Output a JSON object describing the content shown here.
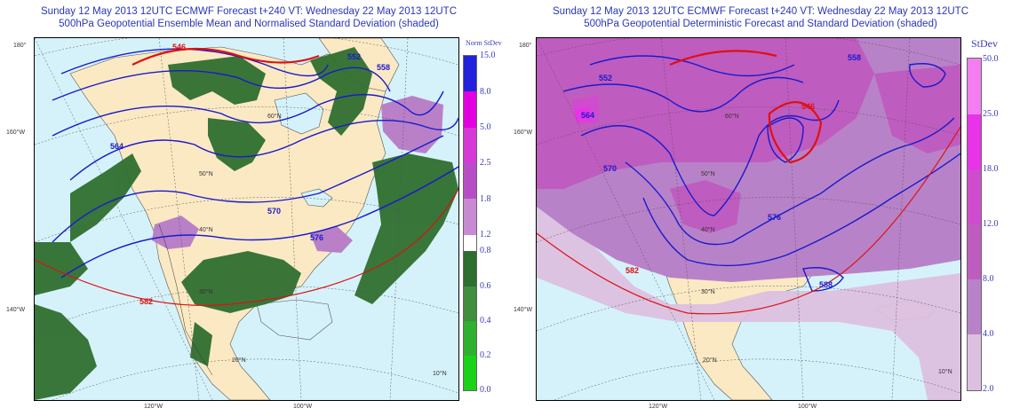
{
  "left": {
    "title_line1": "Sunday 12 May 2013 12UTC ECMWF Forecast t+240  VT: Wednesday 22 May 2013 12UTC",
    "title_line2": "500hPa Geopotential Ensemble Mean and Normalised Standard Deviation (shaded)",
    "edge_labels": {
      "top": "180°",
      "upper": "160°W",
      "lower": "140°W",
      "bottom1": "120°W",
      "bottom2": "100°W"
    },
    "grid_labels": [
      "60°N",
      "50°N",
      "40°N",
      "30°N",
      "20°N",
      "10°N"
    ],
    "contours": [
      "546",
      "552",
      "558",
      "564",
      "570",
      "576",
      "582"
    ],
    "colorbar": {
      "title": "Norm StDev",
      "ticks": [
        "15.0",
        "8.0",
        "5.0",
        "2.5",
        "1.8",
        "1.2",
        "0.8",
        "0.6",
        "0.4",
        "0.2",
        "0.0"
      ],
      "colors": [
        "#2222dd",
        "#e000e0",
        "#d63ad6",
        "#b84ec6",
        "#c88ad2",
        "#ffffff",
        "#2e6e2e",
        "#3f8f3f",
        "#2fb02f",
        "#19d219"
      ]
    }
  },
  "right": {
    "title_line1": "Sunday 12 May 2013 12UTC ECMWF Forecast t+240  VT: Wednesday 22 May 2013 12UTC",
    "title_line2": "500hPa Geopotential Deterministic Forecast and Standard Deviation (shaded)",
    "edge_labels": {
      "top": "180°",
      "upper": "160°W",
      "lower": "140°W",
      "bottom1": "120°W",
      "bottom2": "100°W"
    },
    "grid_labels": [
      "60°N",
      "50°N",
      "40°N",
      "30°N",
      "20°N",
      "10°N"
    ],
    "contours": [
      "546",
      "552",
      "558",
      "564",
      "570",
      "576",
      "582",
      "588"
    ],
    "colorbar": {
      "title": "StDev",
      "ticks": [
        "50.0",
        "25.0",
        "18.0",
        "12.0",
        "8.0",
        "4.0",
        "2.0"
      ],
      "colors": [
        "#f27ef2",
        "#e833e8",
        "#cf4ccf",
        "#bf5cbf",
        "#b882c8",
        "#dcc0e0"
      ]
    }
  },
  "map_colors": {
    "ocean": "#d5f2fa",
    "land": "#fbe9c4",
    "contour": "#1a1acc",
    "contour_warm": "#e01010"
  }
}
